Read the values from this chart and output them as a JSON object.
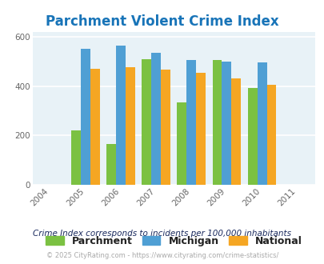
{
  "title": "Parchment Violent Crime Index",
  "title_color": "#1874b8",
  "years": [
    2004,
    2005,
    2006,
    2007,
    2008,
    2009,
    2010,
    2011
  ],
  "data_years": [
    2005,
    2006,
    2007,
    2008,
    2009,
    2010
  ],
  "parchment": [
    220,
    165,
    510,
    335,
    505,
    393
  ],
  "michigan": [
    550,
    565,
    535,
    505,
    500,
    495
  ],
  "national": [
    470,
    475,
    465,
    455,
    430,
    405
  ],
  "parchment_color": "#7bc142",
  "michigan_color": "#4f9fd4",
  "national_color": "#f5a623",
  "bg_color": "#e8f2f7",
  "ylim": [
    0,
    620
  ],
  "yticks": [
    0,
    200,
    400,
    600
  ],
  "bar_width": 0.27,
  "legend_labels": [
    "Parchment",
    "Michigan",
    "National"
  ],
  "footnote1": "Crime Index corresponds to incidents per 100,000 inhabitants",
  "footnote2": "© 2025 CityRating.com - https://www.cityrating.com/crime-statistics/",
  "footnote1_color": "#1a2a5e",
  "footnote2_color": "#aaaaaa"
}
